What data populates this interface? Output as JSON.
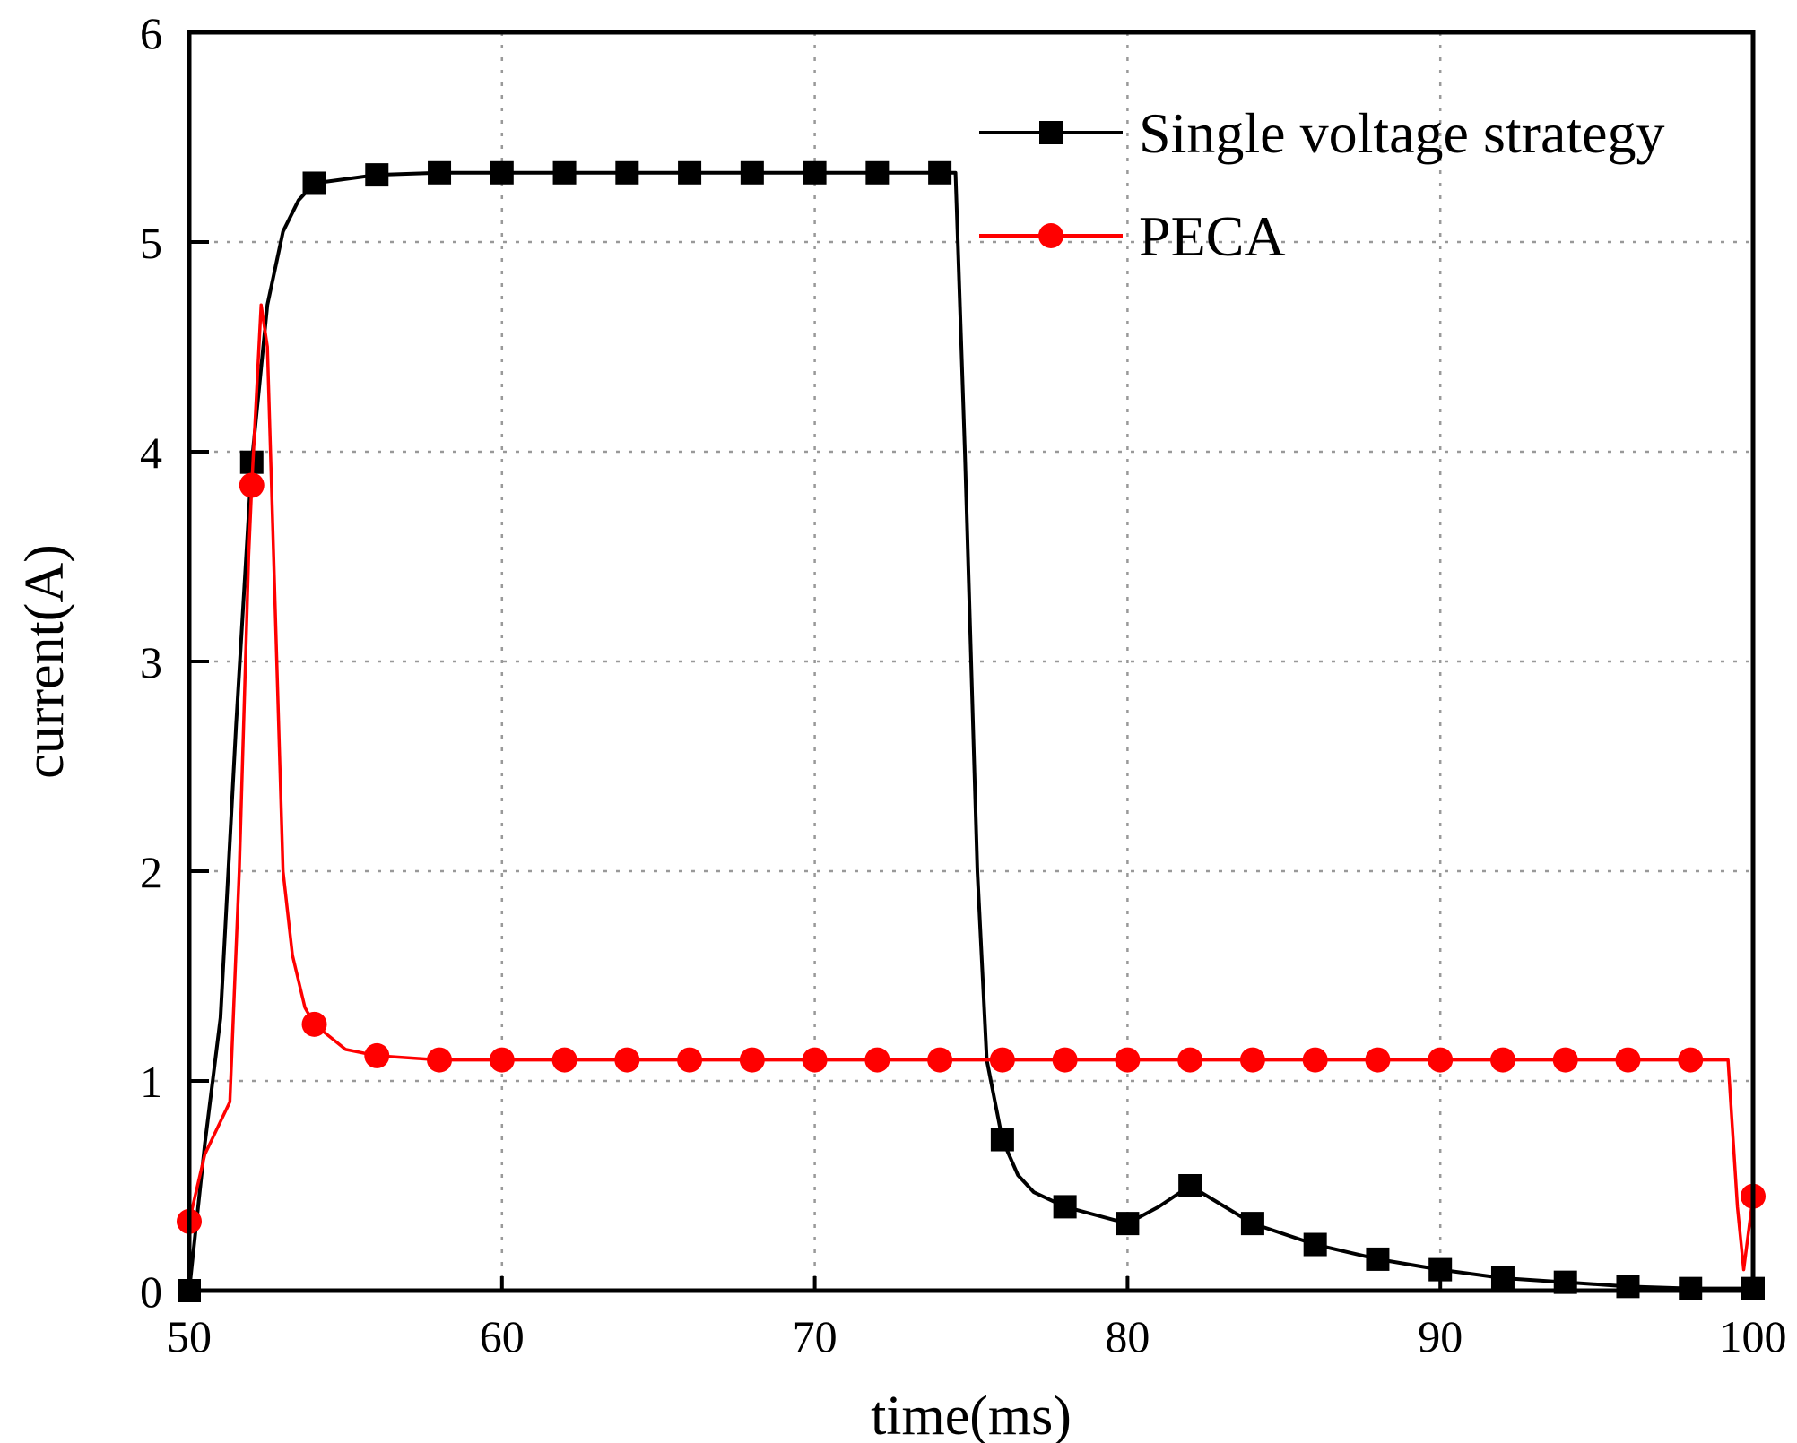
{
  "chart_data": {
    "type": "line",
    "title": "",
    "xlabel": "time(ms)",
    "ylabel": "current(A)",
    "xlim": [
      50,
      100
    ],
    "ylim": [
      0,
      6
    ],
    "xticks": [
      50,
      60,
      70,
      80,
      90,
      100
    ],
    "yticks": [
      0,
      1,
      2,
      3,
      4,
      5,
      6
    ],
    "grid": true,
    "legend_position": "top-right",
    "series": [
      {
        "name": "Single voltage strategy",
        "color": "#000000",
        "marker": "square",
        "line": [
          [
            50,
            0
          ],
          [
            50.5,
            0.7
          ],
          [
            51,
            1.3
          ],
          [
            51.5,
            2.7
          ],
          [
            52,
            3.95
          ],
          [
            52.5,
            4.7
          ],
          [
            53,
            5.05
          ],
          [
            53.5,
            5.2
          ],
          [
            54,
            5.28
          ],
          [
            56,
            5.32
          ],
          [
            58,
            5.33
          ],
          [
            74.5,
            5.33
          ],
          [
            74.8,
            4.0
          ],
          [
            75.2,
            2.0
          ],
          [
            75.5,
            1.1
          ],
          [
            76,
            0.72
          ],
          [
            76.5,
            0.55
          ],
          [
            77,
            0.47
          ],
          [
            78,
            0.4
          ],
          [
            80,
            0.32
          ],
          [
            81,
            0.4
          ],
          [
            82,
            0.5
          ],
          [
            84,
            0.32
          ],
          [
            86,
            0.22
          ],
          [
            88,
            0.15
          ],
          [
            90,
            0.1
          ],
          [
            92,
            0.06
          ],
          [
            94,
            0.04
          ],
          [
            96,
            0.02
          ],
          [
            98,
            0.01
          ],
          [
            100,
            0.01
          ]
        ],
        "markers": [
          [
            50,
            0
          ],
          [
            52,
            3.95
          ],
          [
            54,
            5.28
          ],
          [
            56,
            5.32
          ],
          [
            58,
            5.33
          ],
          [
            60,
            5.33
          ],
          [
            62,
            5.33
          ],
          [
            64,
            5.33
          ],
          [
            66,
            5.33
          ],
          [
            68,
            5.33
          ],
          [
            70,
            5.33
          ],
          [
            72,
            5.33
          ],
          [
            74,
            5.33
          ],
          [
            76,
            0.72
          ],
          [
            78,
            0.4
          ],
          [
            80,
            0.32
          ],
          [
            82,
            0.5
          ],
          [
            84,
            0.32
          ],
          [
            86,
            0.22
          ],
          [
            88,
            0.15
          ],
          [
            90,
            0.1
          ],
          [
            92,
            0.06
          ],
          [
            94,
            0.04
          ],
          [
            96,
            0.02
          ],
          [
            98,
            0.01
          ],
          [
            100,
            0.01
          ]
        ]
      },
      {
        "name": "PECA",
        "color": "#ff0000",
        "marker": "circle",
        "line": [
          [
            50,
            0.33
          ],
          [
            50.5,
            0.65
          ],
          [
            51.3,
            0.9
          ],
          [
            51.6,
            2.0
          ],
          [
            51.9,
            3.5
          ],
          [
            52,
            3.84
          ],
          [
            52.3,
            4.7
          ],
          [
            52.5,
            4.5
          ],
          [
            52.7,
            3.5
          ],
          [
            53,
            2.0
          ],
          [
            53.3,
            1.6
          ],
          [
            53.7,
            1.35
          ],
          [
            54,
            1.27
          ],
          [
            55,
            1.15
          ],
          [
            56,
            1.12
          ],
          [
            58,
            1.1
          ],
          [
            99.2,
            1.1
          ],
          [
            99.5,
            0.4
          ],
          [
            99.7,
            0.1
          ],
          [
            100,
            0.45
          ]
        ],
        "markers": [
          [
            50,
            0.33
          ],
          [
            52,
            3.84
          ],
          [
            54,
            1.27
          ],
          [
            56,
            1.12
          ],
          [
            58,
            1.1
          ],
          [
            60,
            1.1
          ],
          [
            62,
            1.1
          ],
          [
            64,
            1.1
          ],
          [
            66,
            1.1
          ],
          [
            68,
            1.1
          ],
          [
            70,
            1.1
          ],
          [
            72,
            1.1
          ],
          [
            74,
            1.1
          ],
          [
            76,
            1.1
          ],
          [
            78,
            1.1
          ],
          [
            80,
            1.1
          ],
          [
            82,
            1.1
          ],
          [
            84,
            1.1
          ],
          [
            86,
            1.1
          ],
          [
            88,
            1.1
          ],
          [
            90,
            1.1
          ],
          [
            92,
            1.1
          ],
          [
            94,
            1.1
          ],
          [
            96,
            1.1
          ],
          [
            98,
            1.1
          ],
          [
            100,
            0.45
          ]
        ]
      }
    ]
  }
}
